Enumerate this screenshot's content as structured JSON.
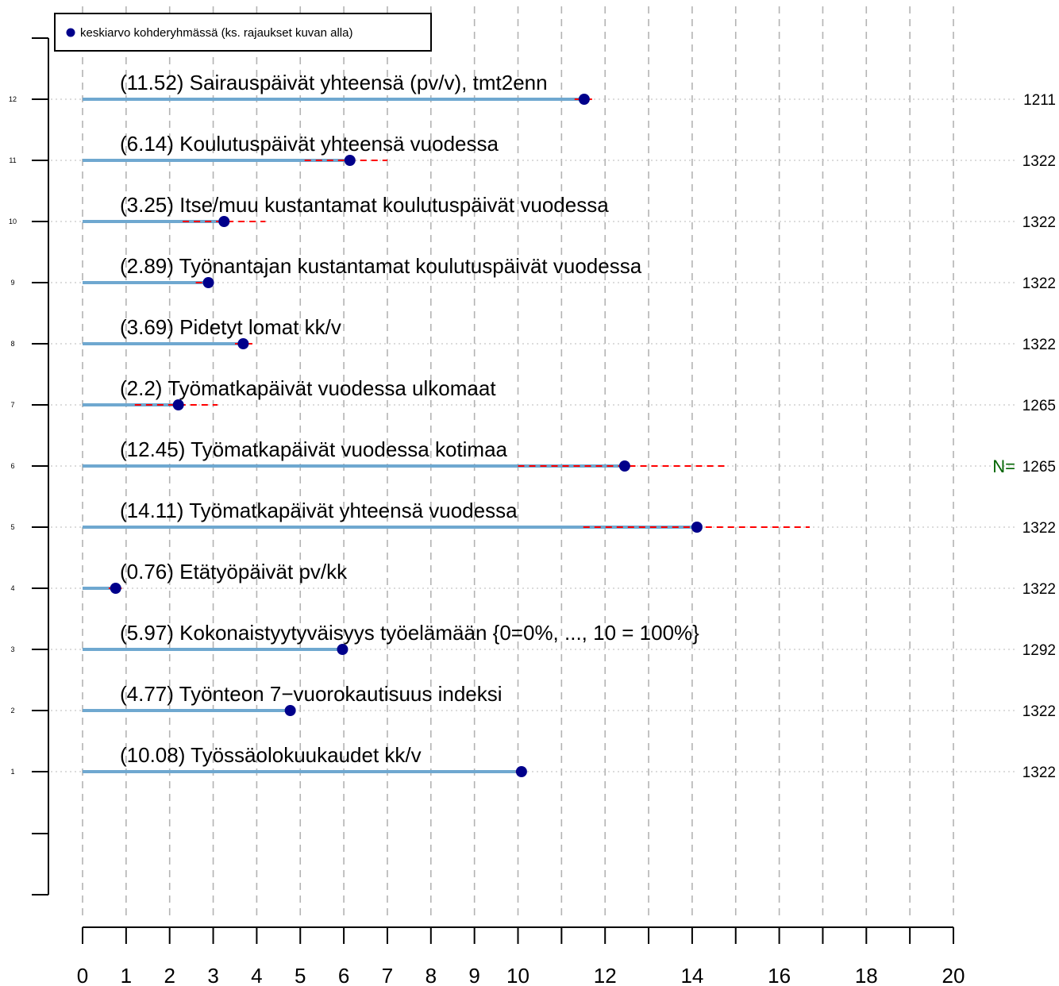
{
  "chart_data": {
    "type": "dot",
    "legend": {
      "label": "keskiarvo kohderyhmässä (ks. rajaukset kuvan alla)",
      "placement": "top-left"
    },
    "n_prefix": "N=",
    "x_ticks": [
      0,
      1,
      2,
      3,
      4,
      5,
      6,
      7,
      8,
      9,
      10,
      12,
      14,
      16,
      18,
      20
    ],
    "y_ticks": [
      1,
      2,
      3,
      4,
      5,
      6,
      7,
      8,
      9,
      10,
      11,
      12
    ],
    "xlim": [
      0,
      20
    ],
    "grid": true,
    "colors": {
      "bar": "#6fa8d0",
      "dot": "#00008b",
      "interval": "#ff0000",
      "n_prefix": "#006400",
      "grid": "#b3b3b3"
    },
    "rows": [
      {
        "y": 12,
        "label": "(11.52) Sairauspäivät yhteensä (pv/v), tmt2enn",
        "mean": 11.52,
        "low": 11.3,
        "high": 11.8,
        "n": "1211"
      },
      {
        "y": 11,
        "label": "(6.14) Koulutuspäivät yhteensä vuodessa",
        "mean": 6.14,
        "low": 5.1,
        "high": 7.0,
        "n": "1322"
      },
      {
        "y": 10,
        "label": "(3.25) Itse/muu kustantamat koulutuspäivät vuodessa",
        "mean": 3.25,
        "low": 2.3,
        "high": 4.2,
        "n": "1322"
      },
      {
        "y": 9,
        "label": "(2.89) Työnantajan kustantamat koulutuspäivät vuodessa",
        "mean": 2.89,
        "low": 2.6,
        "high": 3.1,
        "n": "1322"
      },
      {
        "y": 8,
        "label": "(3.69) Pidetyt lomat kk/v",
        "mean": 3.69,
        "low": 3.5,
        "high": 3.9,
        "n": "1322"
      },
      {
        "y": 7,
        "label": "(2.2) Työmatkapäivät vuodessa ulkomaat",
        "mean": 2.2,
        "low": 1.2,
        "high": 3.1,
        "n": "1265"
      },
      {
        "y": 6,
        "label": "(12.45) Työmatkapäivät vuodessa kotimaa",
        "mean": 12.45,
        "low": 10.0,
        "high": 14.8,
        "n": "1265"
      },
      {
        "y": 5,
        "label": "(14.11) Työmatkapäivät yhteensä vuodessa",
        "mean": 14.11,
        "low": 11.5,
        "high": 16.7,
        "n": "1322"
      },
      {
        "y": 4,
        "label": "(0.76) Etätyöpäivät pv/kk",
        "mean": 0.76,
        "low": 0.6,
        "high": 0.9,
        "n": "1322"
      },
      {
        "y": 3,
        "label": "(5.97) Kokonaistyytyväisyys työelämään {0=0%, ..., 10 = 100%}",
        "mean": 5.97,
        "low": 5.85,
        "high": 6.1,
        "n": "1292"
      },
      {
        "y": 2,
        "label": "(4.77) Työnteon 7−vuorokautisuus indeksi",
        "mean": 4.77,
        "low": 4.65,
        "high": 4.9,
        "n": "1322"
      },
      {
        "y": 1,
        "label": "(10.08) Työssäolokuukaudet kk/v",
        "mean": 10.08,
        "low": 9.95,
        "high": 10.2,
        "n": "1322"
      }
    ]
  }
}
